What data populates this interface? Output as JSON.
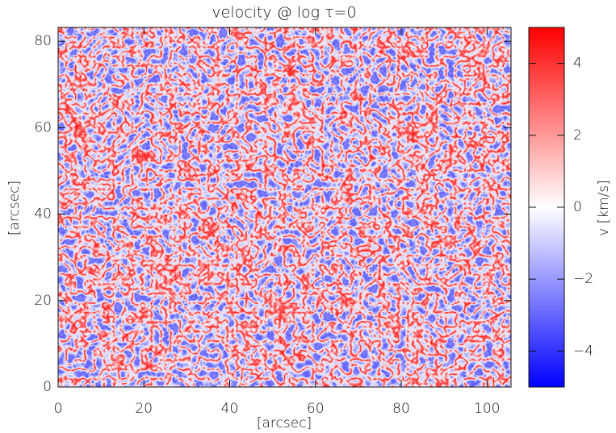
{
  "chart_data": {
    "type": "heatmap",
    "title": "velocity @ log τ=0",
    "x_label": "[arcsec]",
    "y_label": "[arcsec]",
    "xlim": [
      0,
      105.6
    ],
    "xticks": [
      0,
      20,
      40,
      60,
      80,
      100
    ],
    "ylim": [
      0,
      83.2
    ],
    "yticks": [
      0,
      20,
      40,
      60,
      80
    ],
    "colorbar": {
      "label": "v [km/s]",
      "lim": [
        -5,
        5
      ],
      "ticks": [
        {
          "value": -4,
          "label": "−4"
        },
        {
          "value": -2,
          "label": "−2"
        },
        0,
        2,
        4
      ],
      "colormap": [
        "#0000ff",
        "#ffffff",
        "#ff0000"
      ]
    }
  }
}
